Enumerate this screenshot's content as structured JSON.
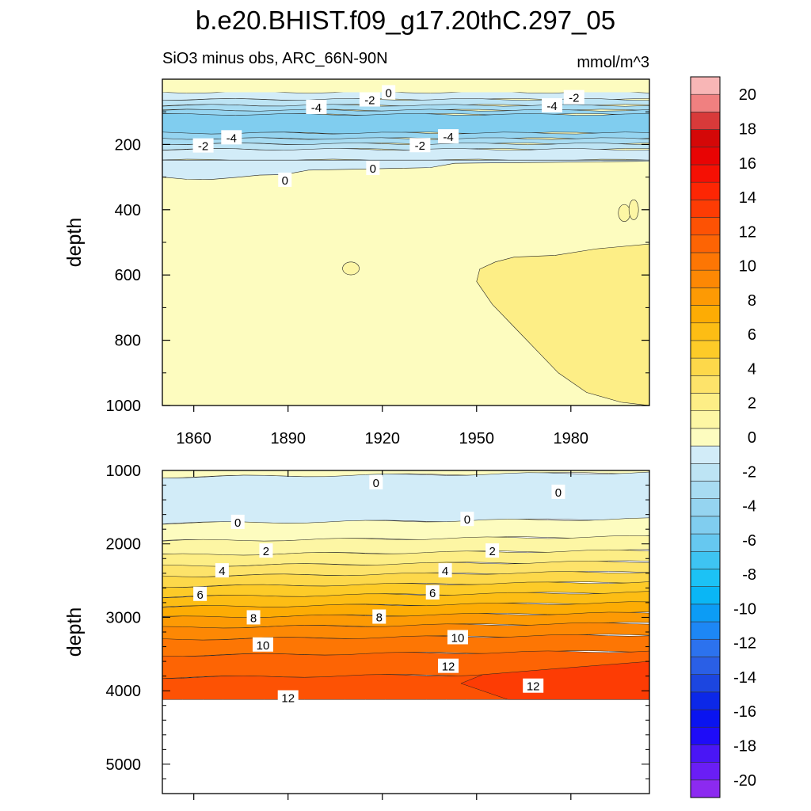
{
  "chart_data": {
    "type": "heatmap",
    "title": "b.e20.BHIST.f09_g17.20thC.297_05",
    "subtitle_left": "SiO3 minus obs, ARC_66N-90N",
    "subtitle_right": "mmol/m^3",
    "x_ticks": [
      "1860",
      "1890",
      "1920",
      "1950",
      "1980"
    ],
    "x_tick_values": [
      1860,
      1890,
      1920,
      1950,
      1980
    ],
    "xlim": [
      1850,
      2005
    ],
    "colorbar": {
      "levels": [
        -20,
        -18,
        -16,
        -14,
        -12,
        -10,
        -8,
        -6,
        -4,
        -2,
        0,
        2,
        4,
        6,
        8,
        10,
        12,
        14,
        16,
        18,
        20
      ],
      "tick_labels": [
        "-20",
        "-18",
        "-16",
        "-14",
        "-12",
        "-10",
        "-8",
        "-6",
        "-4",
        "-2",
        "0",
        "2",
        "4",
        "6",
        "8",
        "10",
        "12",
        "14",
        "16",
        "18",
        "20"
      ],
      "colors": [
        "#8c2af0",
        "#6a1ef5",
        "#4a16f5",
        "#1e0cf8",
        "#0a14f0",
        "#0c28e8",
        "#1c46e0",
        "#2a5fe6",
        "#2c72ee",
        "#1d87f5",
        "#0c9cf5",
        "#0ab6f5",
        "#1cc2f5",
        "#3ec4f2",
        "#66c8f0",
        "#80cdef",
        "#95d4f0",
        "#a8dcf2",
        "#bde4f4",
        "#d2ecf8",
        "#fdfcbf",
        "#fdf6a4",
        "#fdee86",
        "#fde36a",
        "#fdd84a",
        "#fdcb28",
        "#fdbd14",
        "#fdac04",
        "#fd9a04",
        "#fd8804",
        "#fd7604",
        "#fd6404",
        "#fd5204",
        "#fd3c04",
        "#fd2604",
        "#f51004",
        "#e80404",
        "#d40808",
        "#d83a3a",
        "#f08080",
        "#f8b6b6"
      ]
    },
    "panels": [
      {
        "name": "upper",
        "ylabel": "depth",
        "ylim": [
          0,
          1000
        ],
        "y_ticks": [
          "200",
          "400",
          "600",
          "800",
          "1000"
        ],
        "y_tick_values": [
          200,
          400,
          600,
          800,
          1000
        ],
        "contour_labels": [
          {
            "text": "0",
            "x": 1922,
            "y": 40
          },
          {
            "text": "-2",
            "x": 1916,
            "y": 62
          },
          {
            "text": "-4",
            "x": 1899,
            "y": 85
          },
          {
            "text": "-2",
            "x": 1981,
            "y": 55
          },
          {
            "text": "-4",
            "x": 1974,
            "y": 80
          },
          {
            "text": "-4",
            "x": 1872,
            "y": 178
          },
          {
            "text": "-2",
            "x": 1863,
            "y": 203
          },
          {
            "text": "-4",
            "x": 1941,
            "y": 175
          },
          {
            "text": "-2",
            "x": 1932,
            "y": 202
          },
          {
            "text": "0",
            "x": 1917,
            "y": 272
          },
          {
            "text": "0",
            "x": 1889,
            "y": 308
          }
        ]
      },
      {
        "name": "lower",
        "ylabel": "depth",
        "ylim": [
          1000,
          5400
        ],
        "y_ticks": [
          "1000",
          "2000",
          "3000",
          "4000",
          "5000"
        ],
        "y_tick_values": [
          1000,
          2000,
          3000,
          4000,
          5000
        ],
        "bottom_depth": 4120,
        "contour_labels": [
          {
            "text": "0",
            "x": 1918,
            "y": 1160
          },
          {
            "text": "0",
            "x": 1976,
            "y": 1290
          },
          {
            "text": "0",
            "x": 1874,
            "y": 1700
          },
          {
            "text": "0",
            "x": 1947,
            "y": 1660
          },
          {
            "text": "2",
            "x": 1883,
            "y": 2090
          },
          {
            "text": "2",
            "x": 1955,
            "y": 2090
          },
          {
            "text": "4",
            "x": 1869,
            "y": 2360
          },
          {
            "text": "4",
            "x": 1940,
            "y": 2360
          },
          {
            "text": "6",
            "x": 1862,
            "y": 2680
          },
          {
            "text": "6",
            "x": 1936,
            "y": 2660
          },
          {
            "text": "8",
            "x": 1879,
            "y": 3000
          },
          {
            "text": "8",
            "x": 1919,
            "y": 2990
          },
          {
            "text": "10",
            "x": 1882,
            "y": 3370
          },
          {
            "text": "10",
            "x": 1944,
            "y": 3270
          },
          {
            "text": "12",
            "x": 1941,
            "y": 3660
          },
          {
            "text": "12",
            "x": 1968,
            "y": 3930
          },
          {
            "text": "12",
            "x": 1890,
            "y": 4090
          }
        ]
      }
    ]
  }
}
